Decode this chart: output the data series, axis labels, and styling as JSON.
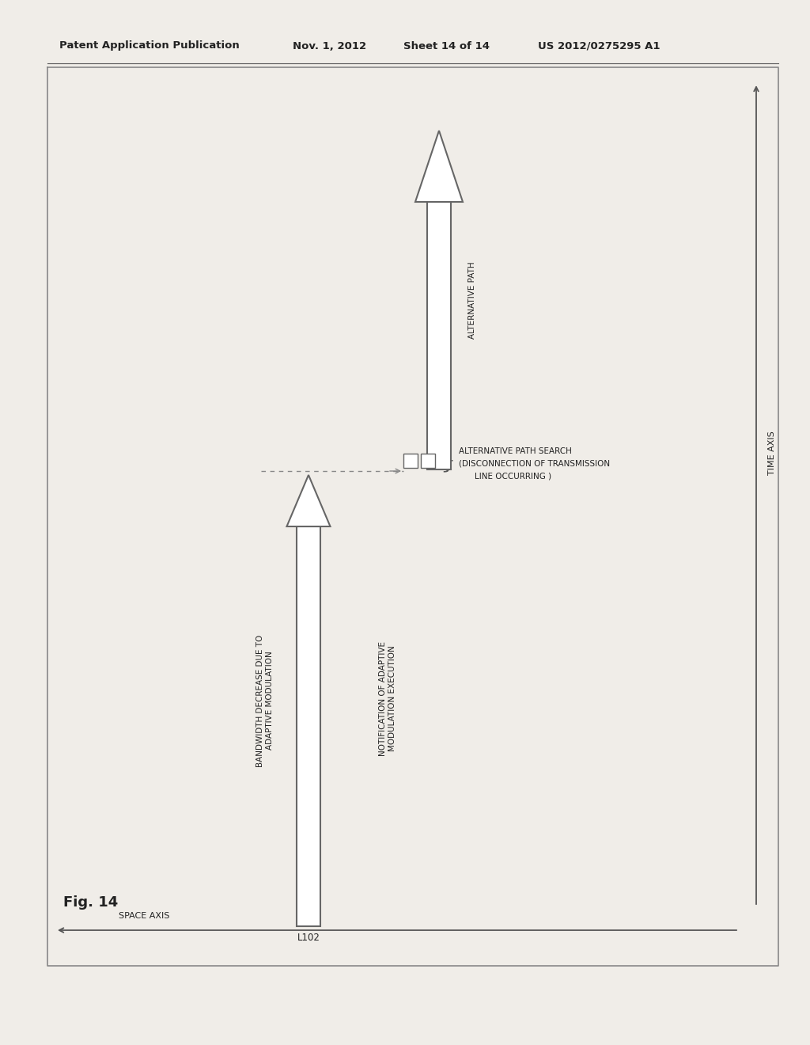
{
  "bg_color": "#f0ede8",
  "page_bg": "#f0ede8",
  "header_text": "Patent Application Publication",
  "header_date": "Nov. 1, 2012",
  "header_sheet": "Sheet 14 of 14",
  "header_patent": "US 2012/0275295 A1",
  "fig_label": "Fig. 14",
  "space_axis_label": "SPACE AXIS",
  "time_axis_label": "TIME AXIS",
  "arrow1_label": "L102",
  "arrow1_text_line1": "BANDWIDTH DECREASE DUE TO",
  "arrow1_text_line2": "ADAPTIVE MODULATION",
  "notif_text_line1": "NOTIFICATION OF ADAPTIVE",
  "notif_text_line2": "MODULATION EXECUTION",
  "alt_path_label": "ALTERNATIVE PATH",
  "alt_path_search_line1": "ALTERNATIVE PATH SEARCH",
  "alt_path_search_line2": "(DISCONNECTION OF TRANSMISSION",
  "alt_path_search_line3": "LINE OCCURRING )",
  "line_color": "#555555",
  "text_color": "#222222",
  "arrow_edge": "#666666",
  "arrow_face": "#ffffff"
}
